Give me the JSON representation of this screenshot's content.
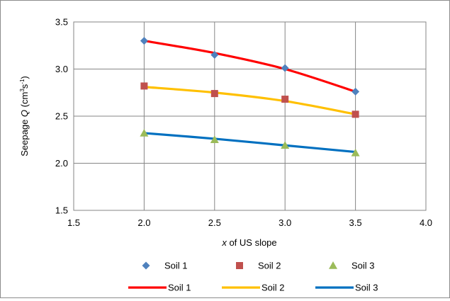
{
  "chart_data": {
    "type": "scatter",
    "title": "",
    "xlabel": {
      "var": "x",
      "rest": " of US slope"
    },
    "ylabel": {
      "prefix": "Seepage ",
      "var": "Q",
      "unit_open": " (cm",
      "exp1": "3",
      "mid": "s",
      "exp2": "-1",
      "unit_close": ")"
    },
    "xlim": [
      1.5,
      4.0
    ],
    "ylim": [
      1.5,
      3.5
    ],
    "xticks": [
      "1.5",
      "2.0",
      "2.5",
      "3.0",
      "3.5",
      "4.0"
    ],
    "yticks": [
      "1.5",
      "2.0",
      "2.5",
      "3.0",
      "3.5"
    ],
    "grid": true,
    "legend_position": "bottom",
    "x": [
      2.0,
      2.5,
      3.0,
      3.5
    ],
    "series": [
      {
        "name": "Soil 1",
        "values": [
          3.3,
          3.15,
          3.01,
          2.76
        ],
        "marker": "diamond",
        "marker_color": "#4f81bd"
      },
      {
        "name": "Soil 2",
        "values": [
          2.82,
          2.74,
          2.68,
          2.52
        ],
        "marker": "square",
        "marker_color": "#c0504d"
      },
      {
        "name": "Soil 3",
        "values": [
          2.32,
          2.25,
          2.19,
          2.11
        ],
        "marker": "triangle",
        "marker_color": "#9bbb59"
      }
    ],
    "fit_lines": [
      {
        "name": "Soil 1",
        "values": [
          3.3,
          3.17,
          3.0,
          2.76
        ],
        "color": "#ff0000"
      },
      {
        "name": "Soil 2",
        "values": [
          2.81,
          2.75,
          2.66,
          2.52
        ],
        "color": "#ffc000"
      },
      {
        "name": "Soil 3",
        "values": [
          2.32,
          2.26,
          2.19,
          2.12
        ],
        "color": "#0070c0"
      }
    ]
  }
}
